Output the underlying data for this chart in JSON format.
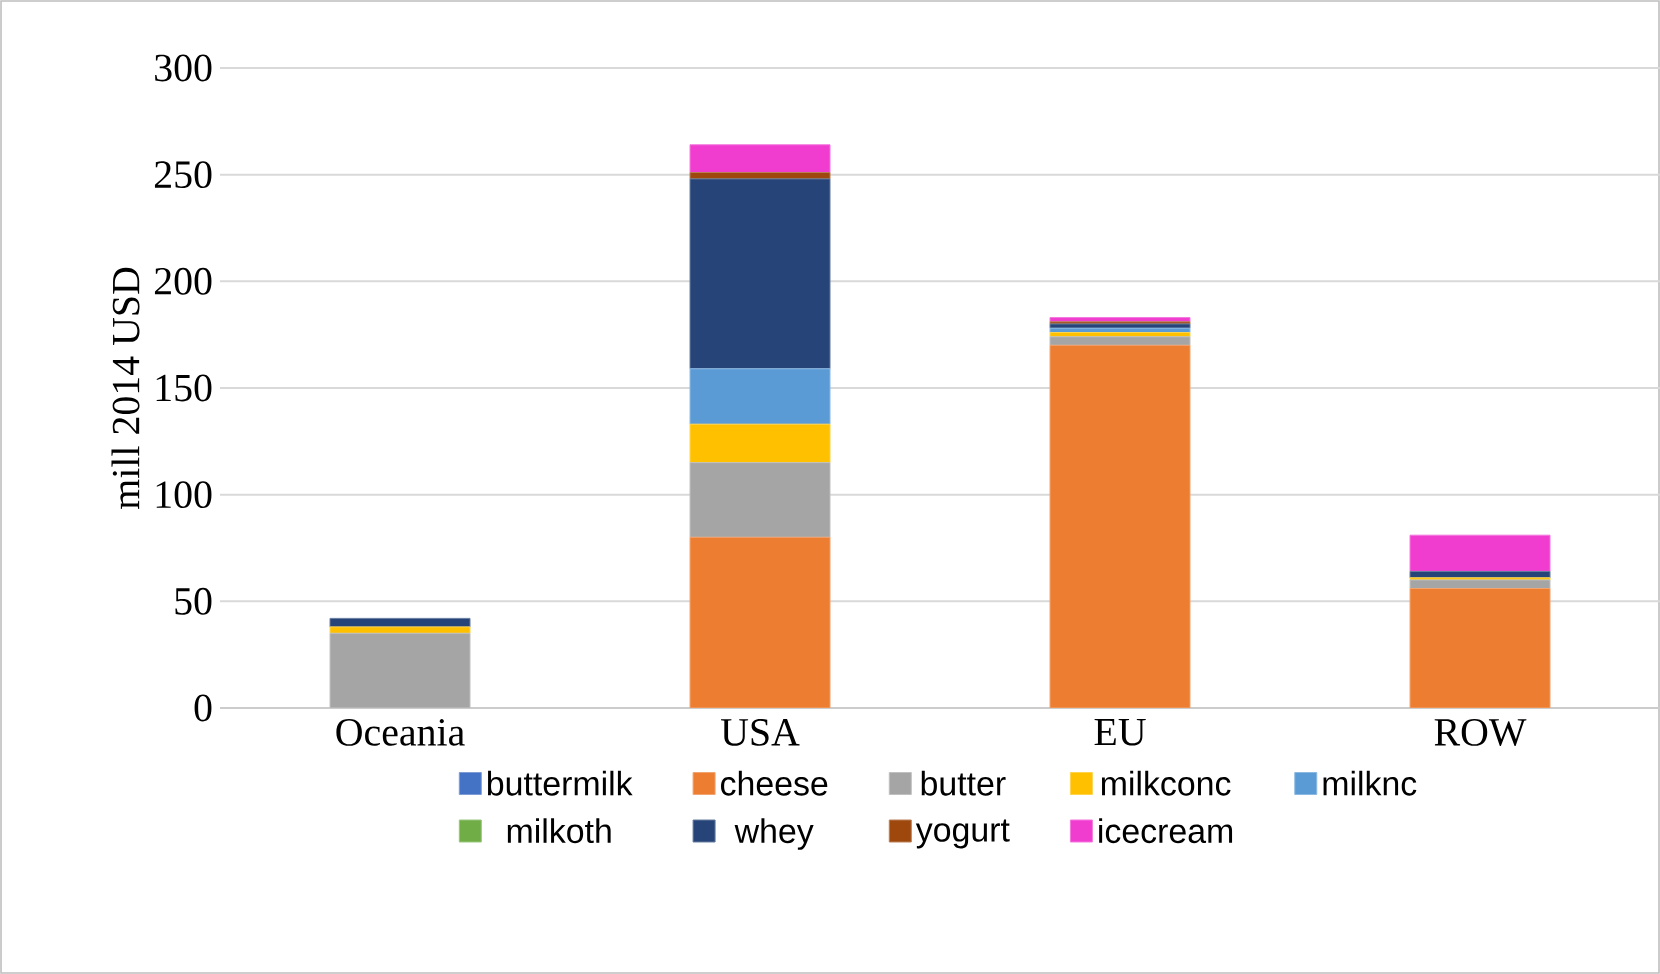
{
  "chart_data": {
    "type": "bar",
    "stacked": true,
    "ylabel": "mill  2014 USD",
    "categories": [
      "Oceania",
      "USA",
      "EU",
      "ROW"
    ],
    "series": [
      {
        "name": "buttermilk",
        "color": "#4472c4",
        "values": [
          0,
          0,
          0,
          0
        ]
      },
      {
        "name": "cheese",
        "color": "#ed7d31",
        "values": [
          0,
          80,
          170,
          56
        ]
      },
      {
        "name": "butter",
        "color": "#a5a5a5",
        "values": [
          35,
          35,
          4,
          4
        ]
      },
      {
        "name": "milkconc",
        "color": "#ffc000",
        "values": [
          3,
          18,
          2,
          1
        ]
      },
      {
        "name": "milknc",
        "color": "#5b9bd5",
        "values": [
          0,
          26,
          2,
          0
        ]
      },
      {
        "name": "milkoth",
        "color": "#70ad47",
        "values": [
          0,
          0,
          0,
          0
        ]
      },
      {
        "name": "whey",
        "color": "#264478",
        "values": [
          4,
          89,
          2,
          3
        ]
      },
      {
        "name": "yogurt",
        "color": "#9e480e",
        "values": [
          0,
          3,
          1,
          0
        ]
      },
      {
        "name": "icecream",
        "color": "#f03ccf",
        "values": [
          0,
          13,
          2,
          17
        ]
      }
    ],
    "ylim": [
      0,
      300
    ],
    "yticks": [
      0,
      50,
      100,
      150,
      200,
      250,
      300
    ],
    "grid": "y",
    "legend": "bottom"
  }
}
